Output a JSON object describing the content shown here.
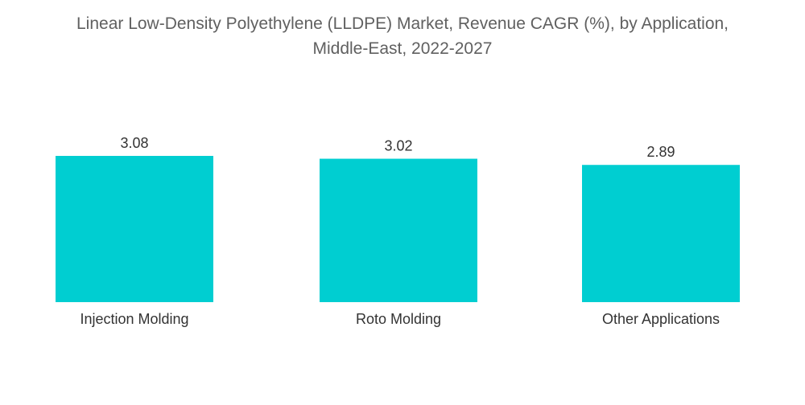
{
  "chart_data": {
    "type": "bar",
    "title_line1": "Linear Low-Density Polyethylene (LLDPE) Market, Revenue CAGR (%), by Application,",
    "title_line2": "Middle-East, 2022-2027",
    "categories": [
      "Injection Molding",
      "Roto Molding",
      "Other Applications"
    ],
    "values": [
      3.08,
      3.02,
      2.89
    ],
    "value_labels": [
      "3.08",
      "3.02",
      "2.89"
    ],
    "xlabel": "",
    "ylabel": "",
    "ylim": [
      0,
      3.08
    ],
    "grid": false,
    "legend": "none",
    "bar_color": "#00CED1"
  }
}
